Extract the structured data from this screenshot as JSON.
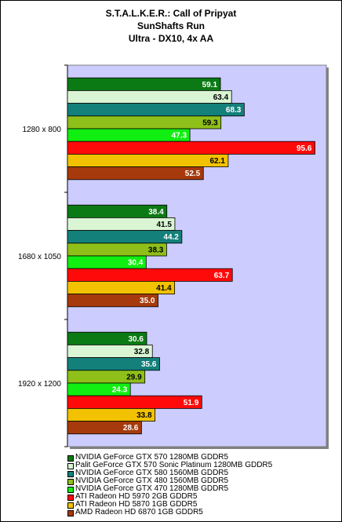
{
  "chart_data": {
    "type": "bar",
    "orientation": "horizontal",
    "title": "S.T.A.L.K.E.R.: Call of Pripyat",
    "subtitle": "SunShafts Run",
    "subtitle2": "Ultra - DX10, 4x AA",
    "categories": [
      "1280 x 800",
      "1680 x 1050",
      "1920 x 1200"
    ],
    "xlim": [
      0,
      100
    ],
    "grid": false,
    "legend_position": "bottom",
    "plot_background": "#ccccff",
    "series": [
      {
        "name": "NVIDIA GeForce GTX 570 1280MB GDDR5",
        "color": "#0b7a14",
        "values": [
          59.1,
          38.4,
          30.6
        ]
      },
      {
        "name": "Palit GeForce GTX 570 Sonic Platinum 1280MB GDDR5",
        "color": "#d9f5d3",
        "values": [
          63.4,
          41.5,
          32.8
        ]
      },
      {
        "name": "NVIDIA GeForce GTX 580 1560MB GDDR5",
        "color": "#13807a",
        "values": [
          68.3,
          44.2,
          35.6
        ]
      },
      {
        "name": "NVIDIA GeForce GTX 480 1560MB GDDR5",
        "color": "#8fbf19",
        "values": [
          59.3,
          38.3,
          29.9
        ]
      },
      {
        "name": "NVIDIA GeForce GTX 470 1280MB GDDR5",
        "color": "#11ee11",
        "values": [
          47.3,
          30.4,
          24.3
        ]
      },
      {
        "name": "ATI Radeon HD 5970 2GB GDDR5",
        "color": "#ff0a0a",
        "values": [
          95.6,
          63.7,
          51.9
        ]
      },
      {
        "name": "ATI Radeon HD 5870 1GB GDDR5",
        "color": "#f2c200",
        "values": [
          62.1,
          41.4,
          33.8
        ]
      },
      {
        "name": "AMD Radeon HD 6870 1GB GDDR5",
        "color": "#a63a0c",
        "values": [
          52.5,
          35.0,
          28.6
        ]
      }
    ]
  }
}
